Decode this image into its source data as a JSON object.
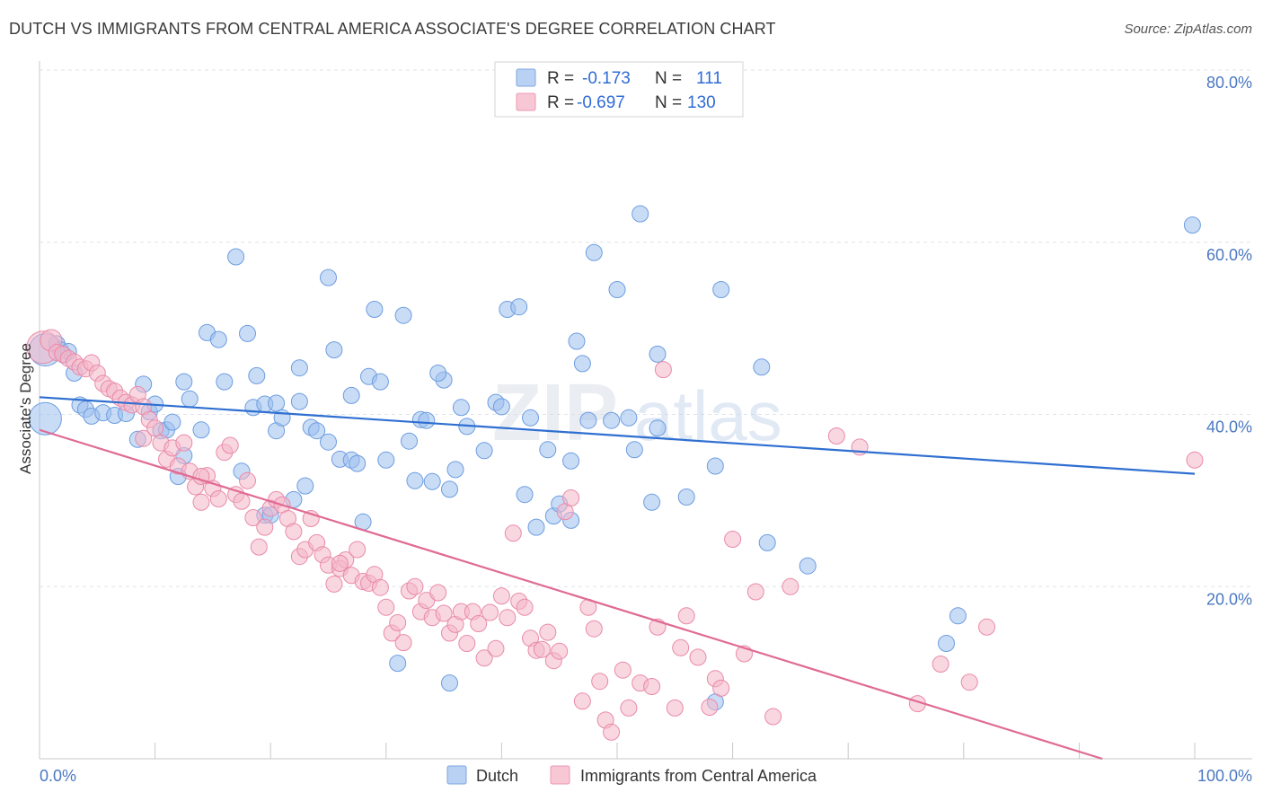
{
  "title": "DUTCH VS IMMIGRANTS FROM CENTRAL AMERICA ASSOCIATE'S DEGREE CORRELATION CHART",
  "source": "Source: ZipAtlas.com",
  "watermark": {
    "left": "ZIP",
    "right": "atlas"
  },
  "colors": {
    "dutch_fill": "#9dbfef",
    "dutch_stroke": "#6d9de0",
    "dutch_line": "#2f6fd1",
    "cam_fill": "#f4b6c9",
    "cam_stroke": "#e98aa9",
    "cam_line": "#e06a93",
    "grid": "#dde3ea",
    "tick_label": "#4a78c2"
  },
  "legend": {
    "r_label": "R =",
    "n_label": "N =",
    "entries": [
      {
        "r": "-0.173",
        "n": "111"
      },
      {
        "r": "-0.697",
        "n": "130"
      }
    ]
  },
  "bottom_legend": [
    "Dutch",
    "Immigrants from Central America"
  ],
  "chart_data": {
    "type": "scatter",
    "title": "DUTCH VS IMMIGRANTS FROM CENTRAL AMERICA ASSOCIATE'S DEGREE CORRELATION CHART",
    "xlabel": "",
    "ylabel": "Associate's Degree",
    "xlim": [
      0,
      100
    ],
    "ylim": [
      0,
      80
    ],
    "x_tick_labels": [
      "0.0%",
      "100.0%"
    ],
    "y_ticks": [
      20,
      40,
      60,
      80
    ],
    "y_tick_labels": [
      "20.0%",
      "40.0%",
      "60.0%",
      "80.0%"
    ],
    "grid": true,
    "series": [
      {
        "name": "Dutch",
        "r": -0.173,
        "n": 111,
        "trend": {
          "x": [
            0,
            100
          ],
          "y": [
            42.0,
            33.1
          ]
        },
        "points": [
          [
            0.5,
            47.5,
            14
          ],
          [
            0.5,
            39.5,
            14
          ],
          [
            1.5,
            48.2,
            6
          ],
          [
            1.8,
            47.5,
            6
          ],
          [
            2.1,
            46.9,
            6
          ],
          [
            2.5,
            47.3,
            6
          ],
          [
            3.0,
            44.8,
            6
          ],
          [
            3.5,
            41.1,
            6
          ],
          [
            4.0,
            40.6,
            6
          ],
          [
            4.5,
            39.8,
            6
          ],
          [
            5.5,
            40.2,
            6
          ],
          [
            6.5,
            39.9,
            6
          ],
          [
            7.5,
            40.1,
            6
          ],
          [
            8.5,
            37.1,
            6
          ],
          [
            9.0,
            43.5,
            6
          ],
          [
            9.5,
            40.3,
            6
          ],
          [
            10.0,
            41.2,
            6
          ],
          [
            10.5,
            38.1,
            6
          ],
          [
            11.0,
            38.2,
            6
          ],
          [
            11.5,
            39.1,
            6
          ],
          [
            12.5,
            35.2,
            6
          ],
          [
            12.0,
            32.8,
            6
          ],
          [
            12.5,
            43.8,
            6
          ],
          [
            13.0,
            41.8,
            6
          ],
          [
            14.0,
            38.2,
            6
          ],
          [
            14.5,
            49.5,
            6
          ],
          [
            15.5,
            48.7,
            6
          ],
          [
            16.0,
            43.8,
            6
          ],
          [
            17.0,
            58.3,
            6
          ],
          [
            17.5,
            33.4,
            6
          ],
          [
            18.0,
            49.4,
            6
          ],
          [
            18.5,
            40.8,
            6
          ],
          [
            18.8,
            44.5,
            6
          ],
          [
            19.5,
            41.2,
            6
          ],
          [
            19.5,
            28.3,
            6
          ],
          [
            20.5,
            41.3,
            6
          ],
          [
            20.0,
            28.3,
            6
          ],
          [
            20.5,
            38.1,
            6
          ],
          [
            21.0,
            39.6,
            6
          ],
          [
            22.0,
            30.1,
            6
          ],
          [
            22.5,
            41.5,
            6
          ],
          [
            22.5,
            45.4,
            6
          ],
          [
            23.0,
            31.7,
            6
          ],
          [
            23.5,
            38.5,
            6
          ],
          [
            24.0,
            38.1,
            6
          ],
          [
            25.0,
            55.9,
            6
          ],
          [
            25.5,
            47.5,
            6
          ],
          [
            25.0,
            36.8,
            6
          ],
          [
            26.0,
            34.8,
            6
          ],
          [
            27.0,
            34.7,
            6
          ],
          [
            27.5,
            34.3,
            6
          ],
          [
            27.0,
            42.2,
            6
          ],
          [
            28.0,
            27.5,
            6
          ],
          [
            28.5,
            44.4,
            6
          ],
          [
            29.0,
            52.2,
            6
          ],
          [
            29.5,
            43.8,
            6
          ],
          [
            30.0,
            34.7,
            6
          ],
          [
            31.5,
            51.5,
            6
          ],
          [
            32.0,
            36.9,
            6
          ],
          [
            32.5,
            32.3,
            6
          ],
          [
            33.0,
            39.4,
            6
          ],
          [
            33.5,
            39.3,
            6
          ],
          [
            34.0,
            32.2,
            6
          ],
          [
            35.0,
            44.0,
            6
          ],
          [
            34.5,
            44.8,
            6
          ],
          [
            35.5,
            31.3,
            6
          ],
          [
            35.5,
            8.8,
            6
          ],
          [
            36.0,
            33.6,
            6
          ],
          [
            36.5,
            40.8,
            6
          ],
          [
            37.0,
            38.6,
            6
          ],
          [
            38.5,
            35.8,
            6
          ],
          [
            39.5,
            41.4,
            6
          ],
          [
            40.0,
            40.9,
            6
          ],
          [
            40.5,
            52.2,
            6
          ],
          [
            41.5,
            52.5,
            6
          ],
          [
            42.0,
            30.7,
            6
          ],
          [
            42.5,
            39.6,
            6
          ],
          [
            43.0,
            26.9,
            6
          ],
          [
            44.0,
            35.9,
            6
          ],
          [
            44.5,
            28.2,
            6
          ],
          [
            45.0,
            29.6,
            6
          ],
          [
            46.0,
            27.7,
            6
          ],
          [
            46.0,
            34.6,
            6
          ],
          [
            46.5,
            48.5,
            6
          ],
          [
            47.0,
            45.9,
            6
          ],
          [
            47.5,
            39.3,
            6
          ],
          [
            48.0,
            58.8,
            6
          ],
          [
            49.5,
            39.3,
            6
          ],
          [
            50.0,
            54.5,
            6
          ],
          [
            51.0,
            39.6,
            6
          ],
          [
            51.5,
            35.9,
            6
          ],
          [
            52.0,
            63.3,
            6
          ],
          [
            53.0,
            29.8,
            6
          ],
          [
            53.5,
            38.4,
            6
          ],
          [
            53.5,
            47.0,
            6
          ],
          [
            56.0,
            30.4,
            6
          ],
          [
            58.5,
            6.6,
            6
          ],
          [
            58.5,
            34.0,
            6
          ],
          [
            59.0,
            54.5,
            6
          ],
          [
            62.5,
            45.5,
            6
          ],
          [
            63.0,
            25.1,
            6
          ],
          [
            66.5,
            22.4,
            6
          ],
          [
            78.5,
            13.4,
            6
          ],
          [
            79.5,
            16.6,
            6
          ],
          [
            99.8,
            62.0,
            6
          ],
          [
            31.0,
            11.1,
            6
          ]
        ]
      },
      {
        "name": "Immigrants from Central America",
        "r": -0.697,
        "n": 130,
        "trend": {
          "x": [
            0,
            92
          ],
          "y": [
            38.2,
            0
          ]
        },
        "points": [
          [
            0.3,
            47.8,
            14
          ],
          [
            1.0,
            48.6,
            8
          ],
          [
            1.5,
            47.2,
            6
          ],
          [
            2.0,
            47.0,
            6
          ],
          [
            2.5,
            46.5,
            6
          ],
          [
            3.0,
            46.1,
            6
          ],
          [
            3.5,
            45.5,
            6
          ],
          [
            4.0,
            45.3,
            6
          ],
          [
            4.5,
            46.0,
            6
          ],
          [
            5.0,
            44.8,
            6
          ],
          [
            5.5,
            43.6,
            6
          ],
          [
            6.0,
            43.0,
            6
          ],
          [
            6.5,
            42.7,
            6
          ],
          [
            7.0,
            41.9,
            6
          ],
          [
            7.5,
            41.4,
            6
          ],
          [
            8.0,
            41.1,
            6
          ],
          [
            8.5,
            42.3,
            6
          ],
          [
            9.0,
            40.9,
            6
          ],
          [
            9.0,
            37.2,
            6
          ],
          [
            9.5,
            39.4,
            6
          ],
          [
            10.0,
            38.4,
            6
          ],
          [
            10.5,
            36.7,
            6
          ],
          [
            11.0,
            34.8,
            6
          ],
          [
            11.5,
            36.1,
            6
          ],
          [
            12.0,
            34.0,
            6
          ],
          [
            12.5,
            36.7,
            6
          ],
          [
            13.0,
            33.4,
            6
          ],
          [
            13.5,
            31.6,
            6
          ],
          [
            14.0,
            29.8,
            6
          ],
          [
            14.5,
            32.9,
            6
          ],
          [
            15.0,
            31.4,
            6
          ],
          [
            15.5,
            30.2,
            6
          ],
          [
            16.0,
            35.6,
            6
          ],
          [
            16.5,
            36.4,
            6
          ],
          [
            17.0,
            30.7,
            6
          ],
          [
            17.5,
            29.9,
            6
          ],
          [
            18.0,
            32.3,
            6
          ],
          [
            18.5,
            28.0,
            6
          ],
          [
            19.0,
            24.6,
            6
          ],
          [
            19.5,
            26.9,
            6
          ],
          [
            20.0,
            29.1,
            6
          ],
          [
            20.5,
            30.1,
            6
          ],
          [
            21.0,
            29.5,
            6
          ],
          [
            21.5,
            27.9,
            6
          ],
          [
            22.0,
            26.4,
            6
          ],
          [
            22.5,
            23.5,
            6
          ],
          [
            23.0,
            24.3,
            6
          ],
          [
            23.5,
            27.9,
            6
          ],
          [
            24.0,
            25.1,
            6
          ],
          [
            24.5,
            23.7,
            6
          ],
          [
            25.0,
            22.5,
            6
          ],
          [
            25.5,
            20.3,
            6
          ],
          [
            26.0,
            22.1,
            6
          ],
          [
            26.5,
            23.1,
            6
          ],
          [
            27.0,
            21.3,
            6
          ],
          [
            27.5,
            24.3,
            6
          ],
          [
            28.0,
            20.6,
            6
          ],
          [
            28.5,
            20.4,
            6
          ],
          [
            29.0,
            21.4,
            6
          ],
          [
            29.5,
            19.9,
            6
          ],
          [
            30.0,
            17.6,
            6
          ],
          [
            30.5,
            14.6,
            6
          ],
          [
            31.0,
            15.8,
            6
          ],
          [
            31.5,
            13.5,
            6
          ],
          [
            32.0,
            19.5,
            6
          ],
          [
            32.5,
            20.0,
            6
          ],
          [
            33.0,
            17.1,
            6
          ],
          [
            33.5,
            18.4,
            6
          ],
          [
            34.0,
            16.4,
            6
          ],
          [
            34.5,
            19.3,
            6
          ],
          [
            35.0,
            16.9,
            6
          ],
          [
            35.5,
            14.6,
            6
          ],
          [
            36.0,
            15.6,
            6
          ],
          [
            36.5,
            17.1,
            6
          ],
          [
            37.0,
            13.4,
            6
          ],
          [
            37.5,
            17.1,
            6
          ],
          [
            38.0,
            15.7,
            6
          ],
          [
            38.5,
            11.7,
            6
          ],
          [
            39.0,
            17.0,
            6
          ],
          [
            39.5,
            12.8,
            6
          ],
          [
            40.0,
            18.9,
            6
          ],
          [
            40.5,
            16.4,
            6
          ],
          [
            41.0,
            26.2,
            6
          ],
          [
            41.5,
            18.3,
            6
          ],
          [
            42.0,
            17.6,
            6
          ],
          [
            42.5,
            14.0,
            6
          ],
          [
            43.0,
            12.6,
            6
          ],
          [
            43.5,
            12.7,
            6
          ],
          [
            44.0,
            14.7,
            6
          ],
          [
            44.5,
            11.4,
            6
          ],
          [
            45.0,
            12.5,
            6
          ],
          [
            45.5,
            28.7,
            6
          ],
          [
            46.0,
            30.3,
            6
          ],
          [
            47.0,
            6.7,
            6
          ],
          [
            47.5,
            17.6,
            6
          ],
          [
            48.0,
            15.1,
            6
          ],
          [
            48.5,
            9.0,
            6
          ],
          [
            49.0,
            4.5,
            6
          ],
          [
            49.5,
            3.1,
            6
          ],
          [
            50.5,
            10.3,
            6
          ],
          [
            51.0,
            5.9,
            6
          ],
          [
            52.0,
            8.8,
            6
          ],
          [
            53.0,
            8.4,
            6
          ],
          [
            53.5,
            15.3,
            6
          ],
          [
            54.0,
            45.2,
            6
          ],
          [
            55.0,
            5.9,
            6
          ],
          [
            55.5,
            12.9,
            6
          ],
          [
            56.0,
            16.6,
            6
          ],
          [
            57.0,
            11.8,
            6
          ],
          [
            58.0,
            6.0,
            6
          ],
          [
            58.5,
            9.3,
            6
          ],
          [
            59.0,
            8.2,
            6
          ],
          [
            60.0,
            25.5,
            6
          ],
          [
            61.0,
            12.2,
            6
          ],
          [
            62.0,
            19.4,
            6
          ],
          [
            63.5,
            4.9,
            6
          ],
          [
            65.0,
            20.0,
            6
          ],
          [
            69.0,
            37.5,
            6
          ],
          [
            71.0,
            36.2,
            6
          ],
          [
            76.0,
            6.4,
            6
          ],
          [
            78.0,
            11.0,
            6
          ],
          [
            80.5,
            8.9,
            6
          ],
          [
            82.0,
            15.3,
            6
          ],
          [
            100.0,
            34.7,
            6
          ],
          [
            26.0,
            22.7,
            6
          ],
          [
            14.0,
            32.8,
            6
          ]
        ]
      }
    ]
  }
}
